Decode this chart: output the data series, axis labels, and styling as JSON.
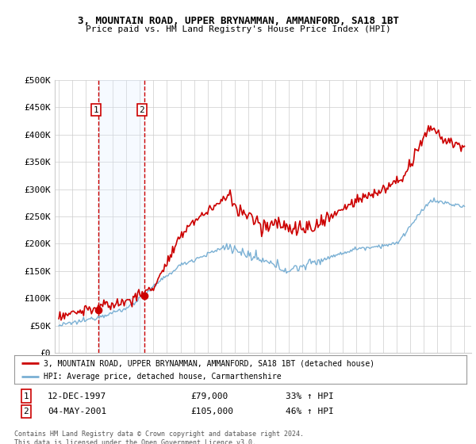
{
  "title": "3, MOUNTAIN ROAD, UPPER BRYNAMMAN, AMMANFORD, SA18 1BT",
  "subtitle": "Price paid vs. HM Land Registry's House Price Index (HPI)",
  "ylabel_ticks": [
    "£0",
    "£50K",
    "£100K",
    "£150K",
    "£200K",
    "£250K",
    "£300K",
    "£350K",
    "£400K",
    "£450K",
    "£500K"
  ],
  "ylim": [
    0,
    500000
  ],
  "ytick_vals": [
    0,
    50000,
    100000,
    150000,
    200000,
    250000,
    300000,
    350000,
    400000,
    450000,
    500000
  ],
  "xlim_start": 1994.7,
  "xlim_end": 2025.5,
  "sale1_x": 1997.95,
  "sale1_y": 79000,
  "sale1_label": "1",
  "sale1_date": "12-DEC-1997",
  "sale1_price": "£79,000",
  "sale1_hpi": "33% ↑ HPI",
  "sale2_x": 2001.35,
  "sale2_y": 105000,
  "sale2_label": "2",
  "sale2_date": "04-MAY-2001",
  "sale2_price": "£105,000",
  "sale2_hpi": "46% ↑ HPI",
  "legend_line1": "3, MOUNTAIN ROAD, UPPER BRYNAMMAN, AMMANFORD, SA18 1BT (detached house)",
  "legend_line2": "HPI: Average price, detached house, Carmarthenshire",
  "footnote": "Contains HM Land Registry data © Crown copyright and database right 2024.\nThis data is licensed under the Open Government Licence v3.0.",
  "red_color": "#cc0000",
  "blue_color": "#7ab0d4",
  "shade_color": "#ddeeff",
  "background_color": "#ffffff",
  "grid_color": "#cccccc"
}
